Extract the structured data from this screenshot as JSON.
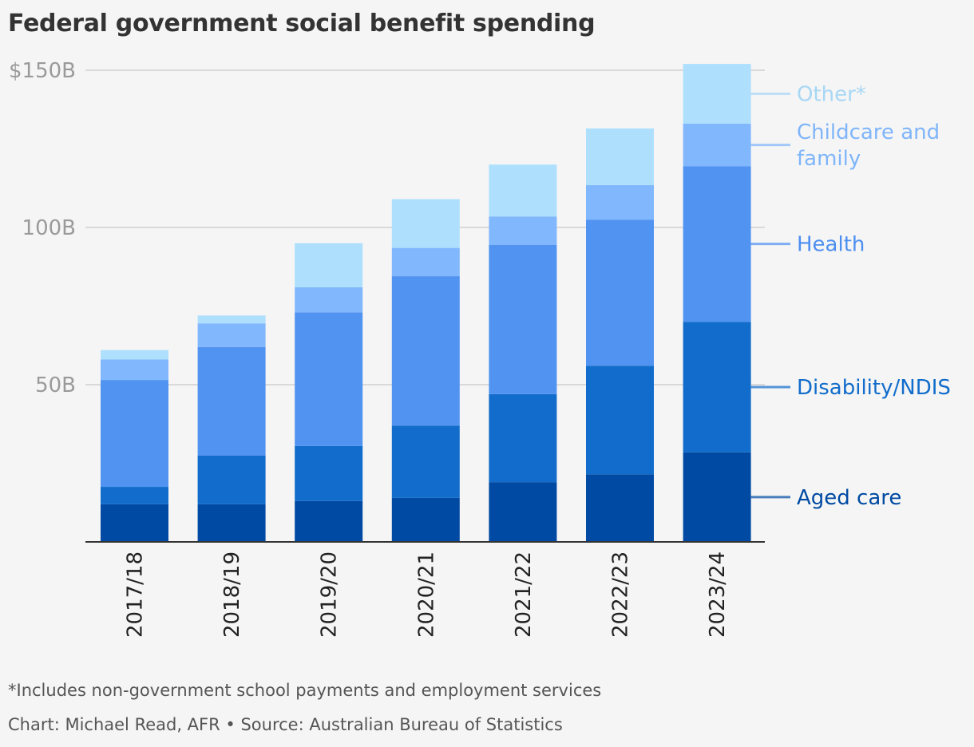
{
  "title": "Federal government social benefit spending",
  "chart_data": {
    "type": "bar",
    "stacked": true,
    "title": "Federal government social benefit spending",
    "xlabel": "",
    "ylabel": "",
    "ylim": [
      0,
      150
    ],
    "y_ticks": [
      {
        "value": 50,
        "label": "50B"
      },
      {
        "value": 100,
        "label": "100B"
      },
      {
        "value": 150,
        "label": "$150B"
      }
    ],
    "grid": true,
    "legend_position": "right, inline labels",
    "categories": [
      "2017/18",
      "2018/19",
      "2019/20",
      "2020/21",
      "2021/22",
      "2022/23",
      "2023/24"
    ],
    "series": [
      {
        "name": "Aged care",
        "label_lines": [
          "Aged care"
        ],
        "color": "#004aa3",
        "label_color": "#004aa3",
        "values": [
          12,
          12,
          13,
          14,
          19,
          21.5,
          28.5
        ]
      },
      {
        "name": "Disability/NDIS",
        "label_lines": [
          "Disability/NDIS"
        ],
        "color": "#116ccb",
        "label_color": "#116ccb",
        "values": [
          5.5,
          15.5,
          17.5,
          23,
          28,
          34.5,
          41.5
        ]
      },
      {
        "name": "Health",
        "label_lines": [
          "Health"
        ],
        "color": "#5193f1",
        "label_color": "#4d8ff0",
        "values": [
          34,
          34.5,
          42.5,
          47.5,
          47.5,
          46.5,
          49.5
        ]
      },
      {
        "name": "Childcare and family",
        "label_lines": [
          "Childcare and",
          "family"
        ],
        "color": "#81b8fd",
        "label_color": "#7fb5fa",
        "values": [
          6.5,
          7.5,
          8,
          9,
          9,
          11,
          13.5
        ]
      },
      {
        "name": "Other*",
        "label_lines": [
          "Other*"
        ],
        "color": "#aee0fe",
        "label_color": "#a7d7f5",
        "values": [
          3,
          2.5,
          14,
          15.5,
          16.5,
          18,
          19
        ]
      }
    ]
  },
  "footer": {
    "note": "*Includes non-government school payments and employment services",
    "credit": "Chart: Michael Read, AFR • Source: Australian Bureau of Statistics"
  }
}
